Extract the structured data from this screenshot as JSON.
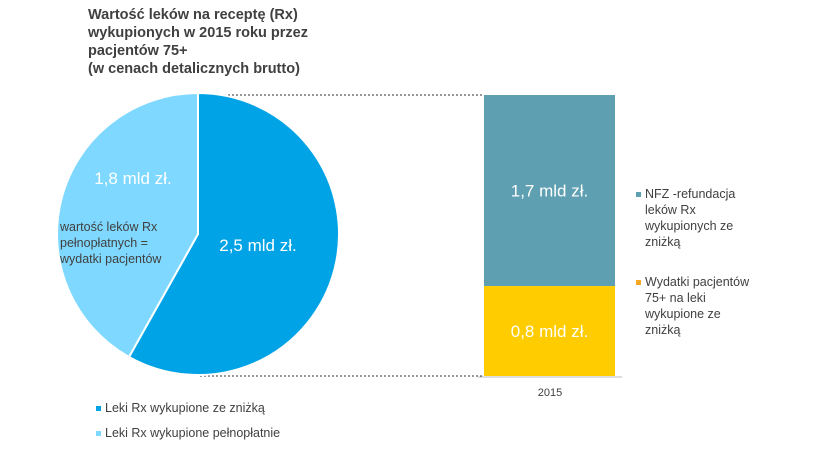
{
  "title_lines": [
    "Wartość leków na receptę (Rx)",
    "wykupionych w 2015 roku przez",
    "pacjentów 75+",
    "(w cenach detalicznych brutto)"
  ],
  "colors": {
    "discount": "#00a3e6",
    "full": "#7fd8ff",
    "nfz": "#5f9fb2",
    "patient": "#ffcc00",
    "patient_legend": "#f5a623"
  },
  "chart_data": [
    {
      "type": "pie",
      "slices": [
        {
          "label": "Leki Rx wykupione ze zniżką",
          "value": 2.5,
          "value_label": "2,5 mld zł."
        },
        {
          "label": "Leki Rx wykupione pełnopłatnie",
          "value": 1.8,
          "value_label": "1,8 mld zł."
        }
      ],
      "annotation": [
        "wartość leków Rx",
        "pełnopłatnych =",
        "wydatki pacjentów"
      ],
      "legend_placement": "bottom-left"
    },
    {
      "type": "bar",
      "stacked": true,
      "categories": [
        "2015"
      ],
      "series": [
        {
          "name": "Wydatki pacjentów 75+ na leki wykupione ze zniżką",
          "values": [
            0.8
          ],
          "value_labels": [
            "0,8 mld zł."
          ]
        },
        {
          "name": "NFZ -refundacja leków Rx wykupionych ze zniżką",
          "values": [
            1.7
          ],
          "value_labels": [
            "1,7 mld zł."
          ]
        }
      ],
      "legend_placement": "right"
    }
  ],
  "legend_right": [
    {
      "lines": [
        "NFZ -refundacja",
        "leków Rx",
        "wykupionych ze",
        "zniżką"
      ]
    },
    {
      "lines": [
        "Wydatki pacjentów",
        "75+ na leki",
        "wykupione ze",
        "zniżką"
      ]
    }
  ]
}
